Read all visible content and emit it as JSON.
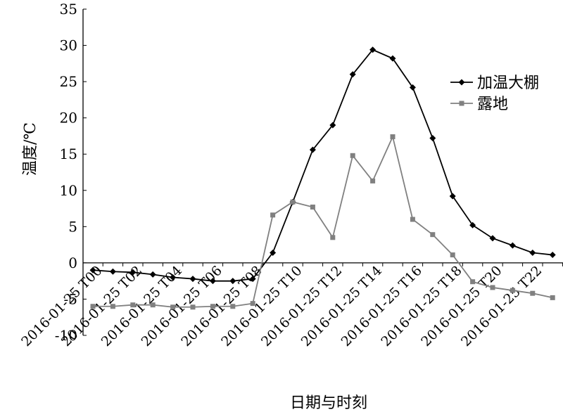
{
  "chart_data": {
    "type": "line",
    "xlabel": "日期与时刻",
    "ylabel": "温度/℃",
    "ylim": [
      -10,
      35
    ],
    "yticks": [
      -10,
      -5,
      0,
      5,
      10,
      15,
      20,
      25,
      30,
      35
    ],
    "x": [
      0,
      1,
      2,
      3,
      4,
      5,
      6,
      7,
      8,
      9,
      10,
      11,
      12,
      13,
      14,
      15,
      16,
      17,
      18,
      19,
      20,
      21,
      22,
      23
    ],
    "xtick_labels": [
      {
        "x": 0,
        "label": "2016-01-25 T00"
      },
      {
        "x": 2,
        "label": "2016-01-25 T02"
      },
      {
        "x": 4,
        "label": "2016-01-25 T04"
      },
      {
        "x": 6,
        "label": "2016-01-25 T06"
      },
      {
        "x": 8,
        "label": "2016-01-25 T08"
      },
      {
        "x": 10,
        "label": "2016-01-25 T10"
      },
      {
        "x": 12,
        "label": "2016-01-25 T12"
      },
      {
        "x": 14,
        "label": "2016-01-25 T14"
      },
      {
        "x": 16,
        "label": "2016-01-25 T16"
      },
      {
        "x": 18,
        "label": "2016-01-25 T18"
      },
      {
        "x": 20,
        "label": "2016-01-25 T20"
      },
      {
        "x": 22,
        "label": "2016-01-25 T22"
      }
    ],
    "legend_position": "right",
    "series": [
      {
        "name": "加温大棚",
        "color": "#000000",
        "marker": "diamond",
        "values": [
          -1.0,
          -1.2,
          -1.3,
          -1.6,
          -2.0,
          -2.2,
          -2.5,
          -2.5,
          -2.2,
          1.4,
          8.4,
          15.6,
          19.0,
          26.0,
          29.4,
          28.2,
          24.2,
          17.2,
          9.2,
          5.2,
          3.4,
          2.4,
          1.4,
          1.1
        ]
      },
      {
        "name": "露地",
        "color": "#808080",
        "marker": "square",
        "values": [
          -6.0,
          -6.0,
          -5.8,
          -5.8,
          -6.1,
          -6.1,
          -6.0,
          -6.0,
          -5.6,
          6.6,
          8.4,
          7.7,
          3.5,
          14.8,
          11.3,
          17.4,
          6.0,
          3.9,
          1.1,
          -2.6,
          -3.4,
          -3.8,
          -4.2,
          -4.8
        ]
      }
    ]
  }
}
